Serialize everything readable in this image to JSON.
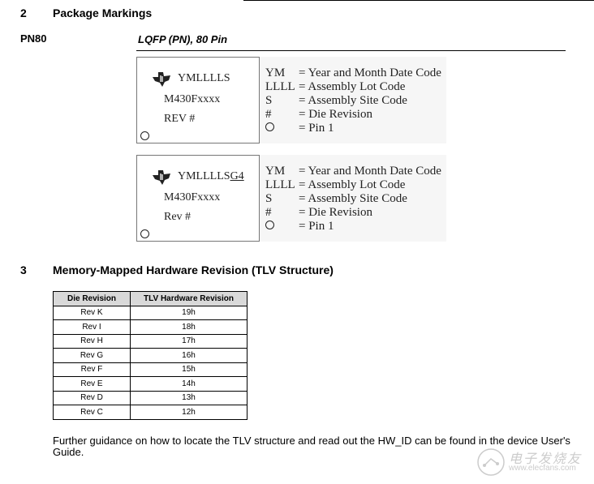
{
  "section2": {
    "number": "2",
    "title": "Package Markings"
  },
  "package": {
    "name": "PN80",
    "description": "LQFP (PN), 80 Pin"
  },
  "markings": [
    {
      "line1": "YMLLLLS",
      "line1_suffix": "",
      "line2": "M430Fxxxx",
      "line3": "REV #"
    },
    {
      "line1": "YMLLLLS",
      "line1_suffix": "G4",
      "line2": "M430Fxxxx",
      "line3": "Rev #"
    }
  ],
  "legend": [
    {
      "key": "YM",
      "desc": "= Year and Month Date Code"
    },
    {
      "key": "LLLL",
      "desc": "= Assembly Lot Code"
    },
    {
      "key": "S",
      "desc": "= Assembly Site Code"
    },
    {
      "key": "#",
      "desc": "= Die Revision"
    },
    {
      "key": "",
      "desc": "= Pin 1",
      "icon": "circle-icon"
    }
  ],
  "section3": {
    "number": "3",
    "title": "Memory-Mapped Hardware Revision (TLV Structure)"
  },
  "table": {
    "headers": [
      "Die Revision",
      "TLV Hardware Revision"
    ],
    "rows": [
      [
        "Rev K",
        "19h"
      ],
      [
        "Rev I",
        "18h"
      ],
      [
        "Rev H",
        "17h"
      ],
      [
        "Rev G",
        "16h"
      ],
      [
        "Rev F",
        "15h"
      ],
      [
        "Rev E",
        "14h"
      ],
      [
        "Rev D",
        "13h"
      ],
      [
        "Rev C",
        "12h"
      ]
    ]
  },
  "paragraph": "Further guidance on how to locate the TLV structure and read out the HW_ID can be found in the device User's Guide.",
  "watermark": {
    "text": "电子发烧友",
    "url": "www.elecfans.com"
  }
}
